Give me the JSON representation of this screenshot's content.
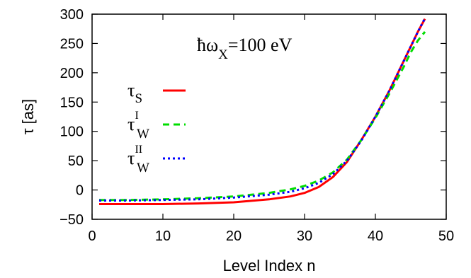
{
  "chart_data": {
    "type": "line",
    "xlabel": "Level Index n",
    "ylabel": "τ [as]",
    "xlim": [
      0,
      50
    ],
    "ylim": [
      -50,
      300
    ],
    "xticks": [
      0,
      10,
      20,
      30,
      40,
      50
    ],
    "yticks": [
      -50,
      0,
      50,
      100,
      150,
      200,
      250,
      300
    ],
    "xtick_labels": [
      "0",
      "10",
      "20",
      "30",
      "40",
      "50"
    ],
    "ytick_labels": [
      "−50",
      "0",
      "50",
      "100",
      "150",
      "200",
      "250",
      "300"
    ],
    "grid": false,
    "legend_position": "left-center",
    "annotation": {
      "prefix": "ħω",
      "sub": "X",
      "suffix": "=100 eV"
    },
    "series": [
      {
        "name": "τS",
        "label_main": "τ",
        "label_sub": "S",
        "label_sup": "",
        "color": "#ff0000",
        "style": "solid",
        "x": [
          1,
          5,
          10,
          15,
          20,
          25,
          28,
          30,
          32,
          34,
          36,
          38,
          40,
          42,
          44,
          45,
          46,
          47
        ],
        "y": [
          -24,
          -24,
          -24,
          -23,
          -21,
          -16,
          -11,
          -5,
          5,
          22,
          48,
          85,
          125,
          170,
          220,
          245,
          270,
          292
        ]
      },
      {
        "name": "τWI",
        "label_main": "τ",
        "label_sub": "W",
        "label_sup": "I",
        "color": "#00dd00",
        "style": "dashed",
        "x": [
          1,
          5,
          10,
          15,
          20,
          25,
          28,
          30,
          32,
          34,
          36,
          38,
          40,
          42,
          44,
          45,
          46,
          47
        ],
        "y": [
          -17,
          -17,
          -16,
          -14,
          -11,
          -5,
          1,
          7,
          16,
          30,
          52,
          85,
          123,
          165,
          210,
          235,
          255,
          270
        ]
      },
      {
        "name": "τWII",
        "label_main": "τ",
        "label_sub": "W",
        "label_sup": "II",
        "color": "#0000ff",
        "style": "dotted",
        "x": [
          1,
          5,
          10,
          15,
          20,
          25,
          28,
          30,
          32,
          34,
          36,
          38,
          40,
          42,
          44,
          45,
          46,
          47
        ],
        "y": [
          -18,
          -18,
          -17,
          -16,
          -13,
          -8,
          -3,
          3,
          12,
          27,
          50,
          84,
          125,
          170,
          220,
          245,
          270,
          293
        ]
      }
    ]
  }
}
